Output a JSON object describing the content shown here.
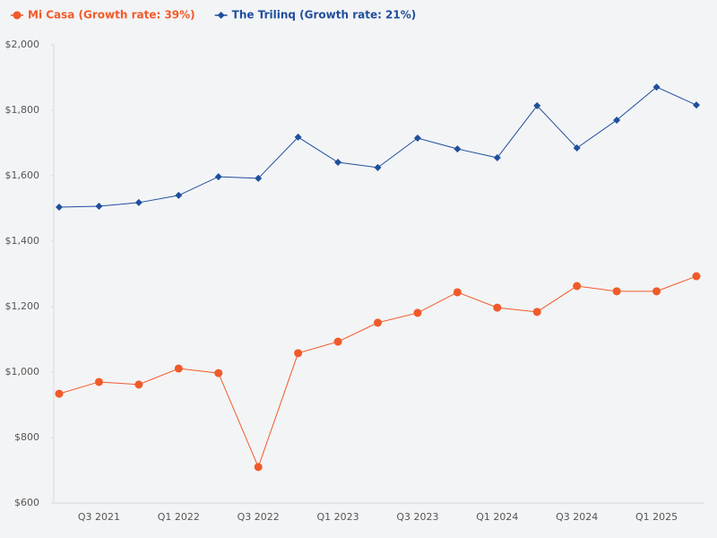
{
  "chart_data": {
    "type": "line",
    "categories": [
      null,
      "Q3 2021",
      null,
      "Q1 2022",
      null,
      "Q3 2022",
      null,
      "Q1 2023",
      null,
      "Q3 2023",
      null,
      "Q1 2024",
      null,
      "Q3 2024",
      null,
      "Q1 2025",
      null
    ],
    "series": [
      {
        "name": "Mi Casa (Growth rate: 39%)",
        "color": "#f15a29",
        "marker": "circle",
        "values": [
          934,
          970,
          962,
          1011,
          997,
          710,
          1058,
          1093,
          1151,
          1181,
          1244,
          1197,
          1184,
          1263,
          1247,
          1247,
          1293
        ]
      },
      {
        "name": "The Trilinq (Growth rate: 21%)",
        "color": "#1f4e9c",
        "marker": "diamond",
        "values": [
          1504,
          1507,
          1518,
          1540,
          1597,
          1592,
          1718,
          1641,
          1625,
          1715,
          1682,
          1655,
          1814,
          1685,
          1770,
          1871,
          1816
        ]
      }
    ],
    "ylim": [
      600,
      2000
    ],
    "yticks": [
      {
        "value": 600,
        "label": "$600"
      },
      {
        "value": 800,
        "label": "$800"
      },
      {
        "value": 1000,
        "label": "$1,000"
      },
      {
        "value": 1200,
        "label": "$1,200"
      },
      {
        "value": 1400,
        "label": "$1,400"
      },
      {
        "value": 1600,
        "label": "$1,600"
      },
      {
        "value": 1800,
        "label": "$1,800"
      },
      {
        "value": 2000,
        "label": "$2,000"
      }
    ],
    "legend": "top-left",
    "grid": false
  }
}
